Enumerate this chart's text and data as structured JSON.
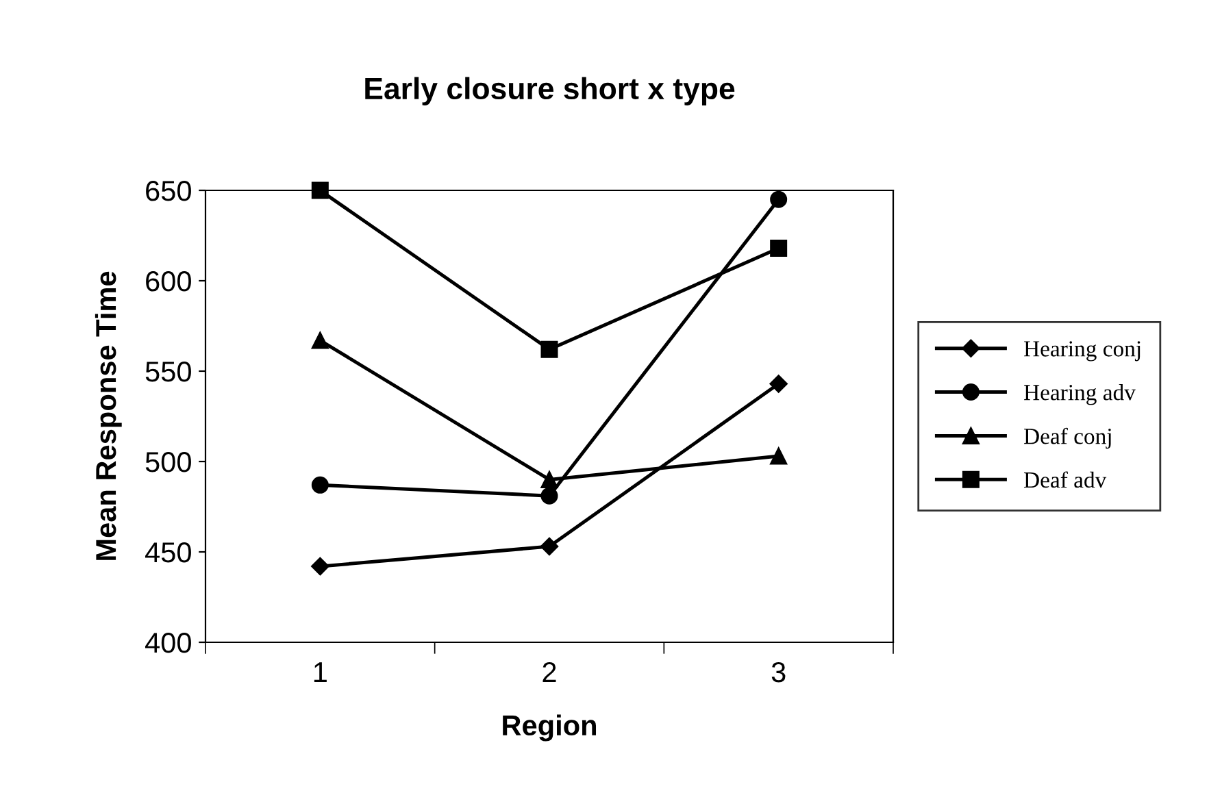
{
  "chart_data": {
    "type": "line",
    "title": "Early closure short x type",
    "xlabel": "Region",
    "ylabel": "Mean Response Time",
    "categories": [
      "1",
      "2",
      "3"
    ],
    "ylim": [
      400,
      650
    ],
    "yticks": [
      400,
      450,
      500,
      550,
      600,
      650
    ],
    "grid": false,
    "legend": "right",
    "line_style": "solid",
    "series": [
      {
        "name": "Hearing conj",
        "color": "#000000",
        "marker": "diamond",
        "values": [
          442,
          453,
          543
        ]
      },
      {
        "name": "Hearing adv",
        "color": "#000000",
        "marker": "circle",
        "values": [
          487,
          481,
          645
        ]
      },
      {
        "name": "Deaf conj",
        "color": "#000000",
        "marker": "triangle",
        "values": [
          567,
          490,
          503
        ]
      },
      {
        "name": "Deaf adv",
        "color": "#000000",
        "marker": "square",
        "values": [
          650,
          562,
          618
        ]
      }
    ]
  }
}
